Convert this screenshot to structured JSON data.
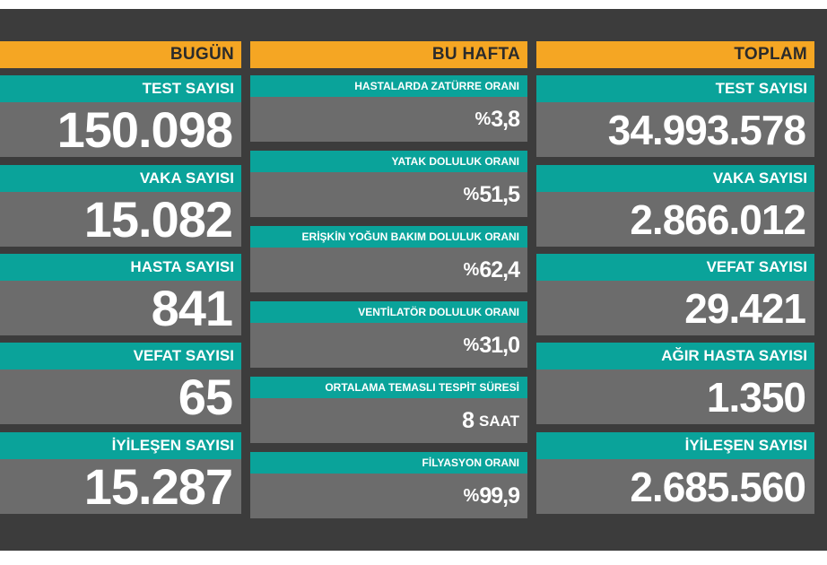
{
  "columns": {
    "today": {
      "header": "BUGÜN",
      "items": [
        {
          "label": "TEST SAYISI",
          "value": "150.098"
        },
        {
          "label": "VAKA SAYISI",
          "value": "15.082"
        },
        {
          "label": "HASTA SAYISI",
          "value": "841"
        },
        {
          "label": "VEFAT SAYISI",
          "value": "65"
        },
        {
          "label": "İYİLEŞEN SAYISI",
          "value": "15.287"
        }
      ]
    },
    "week": {
      "header": "BU HAFTA",
      "items": [
        {
          "label": "HASTALARDA ZATÜRRE ORANI",
          "prefix": "%",
          "value": "3,8"
        },
        {
          "label": "YATAK DOLULUK ORANI",
          "prefix": "%",
          "value": "51,5"
        },
        {
          "label": "ERİŞKİN YOĞUN BAKIM DOLULUK ORANI",
          "prefix": "%",
          "value": "62,4"
        },
        {
          "label": "VENTİLATÖR DOLULUK ORANI",
          "prefix": "%",
          "value": "31,0"
        },
        {
          "label": "ORTALAMA TEMASLI TESPİT SÜRESİ",
          "value": "8",
          "unit": "SAAT"
        },
        {
          "label": "FİLYASYON ORANI",
          "prefix": "%",
          "value": "99,9"
        }
      ]
    },
    "total": {
      "header": "TOPLAM",
      "items": [
        {
          "label": "TEST SAYISI",
          "value": "34.993.578"
        },
        {
          "label": "VAKA SAYISI",
          "value": "2.866.012"
        },
        {
          "label": "VEFAT SAYISI",
          "value": "29.421"
        },
        {
          "label": "AĞIR HASTA SAYISI",
          "value": "1.350"
        },
        {
          "label": "İYİLEŞEN SAYISI",
          "value": "2.685.560"
        }
      ]
    }
  },
  "colors": {
    "header": "#f5a623",
    "label": "#0aa39a",
    "value_bg": "#6c6c6c",
    "board_bg": "#3c3c3c"
  }
}
